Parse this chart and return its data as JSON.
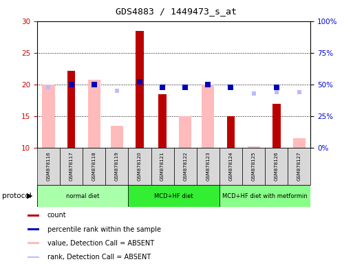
{
  "title": "GDS4883 / 1449473_s_at",
  "samples": [
    "GSM878116",
    "GSM878117",
    "GSM878118",
    "GSM878119",
    "GSM878120",
    "GSM878121",
    "GSM878122",
    "GSM878123",
    "GSM878124",
    "GSM878125",
    "GSM878126",
    "GSM878127"
  ],
  "ylim_left": [
    10,
    30
  ],
  "yticks_left": [
    10,
    15,
    20,
    25,
    30
  ],
  "yticks_right": [
    0,
    25,
    50,
    75,
    100
  ],
  "ytick_labels_right": [
    "0%",
    "25%",
    "50%",
    "75%",
    "100%"
  ],
  "count_values": [
    null,
    22.2,
    null,
    null,
    28.5,
    18.5,
    null,
    null,
    15.0,
    10.0,
    17.0,
    null
  ],
  "value_absent_values": [
    20.0,
    null,
    20.8,
    13.5,
    null,
    null,
    15.0,
    20.0,
    null,
    10.2,
    null,
    11.5
  ],
  "percentile_values": [
    null,
    50.0,
    50.0,
    null,
    52.0,
    48.0,
    47.5,
    50.0,
    47.5,
    null,
    48.0,
    null
  ],
  "rank_absent_values": [
    48.0,
    null,
    50.0,
    45.0,
    null,
    null,
    47.0,
    null,
    null,
    43.0,
    44.0,
    44.0
  ],
  "protocols": [
    {
      "label": "normal diet",
      "start": 0,
      "end": 3,
      "color": "#aaffaa"
    },
    {
      "label": "MCD+HF diet",
      "start": 4,
      "end": 7,
      "color": "#33ee33"
    },
    {
      "label": "MCD+HF diet with metformin",
      "start": 8,
      "end": 11,
      "color": "#88ff88"
    }
  ],
  "count_color": "#bb0000",
  "value_absent_color": "#ffbbbb",
  "percentile_color": "#0000bb",
  "rank_absent_color": "#bbbbff",
  "plot_bg": "#ffffff",
  "axis_color_left": "#cc0000",
  "axis_color_right": "#0000cc",
  "legend_items": [
    {
      "label": "count",
      "color": "#bb0000"
    },
    {
      "label": "percentile rank within the sample",
      "color": "#0000bb"
    },
    {
      "label": "value, Detection Call = ABSENT",
      "color": "#ffbbbb"
    },
    {
      "label": "rank, Detection Call = ABSENT",
      "color": "#bbbbff"
    }
  ]
}
